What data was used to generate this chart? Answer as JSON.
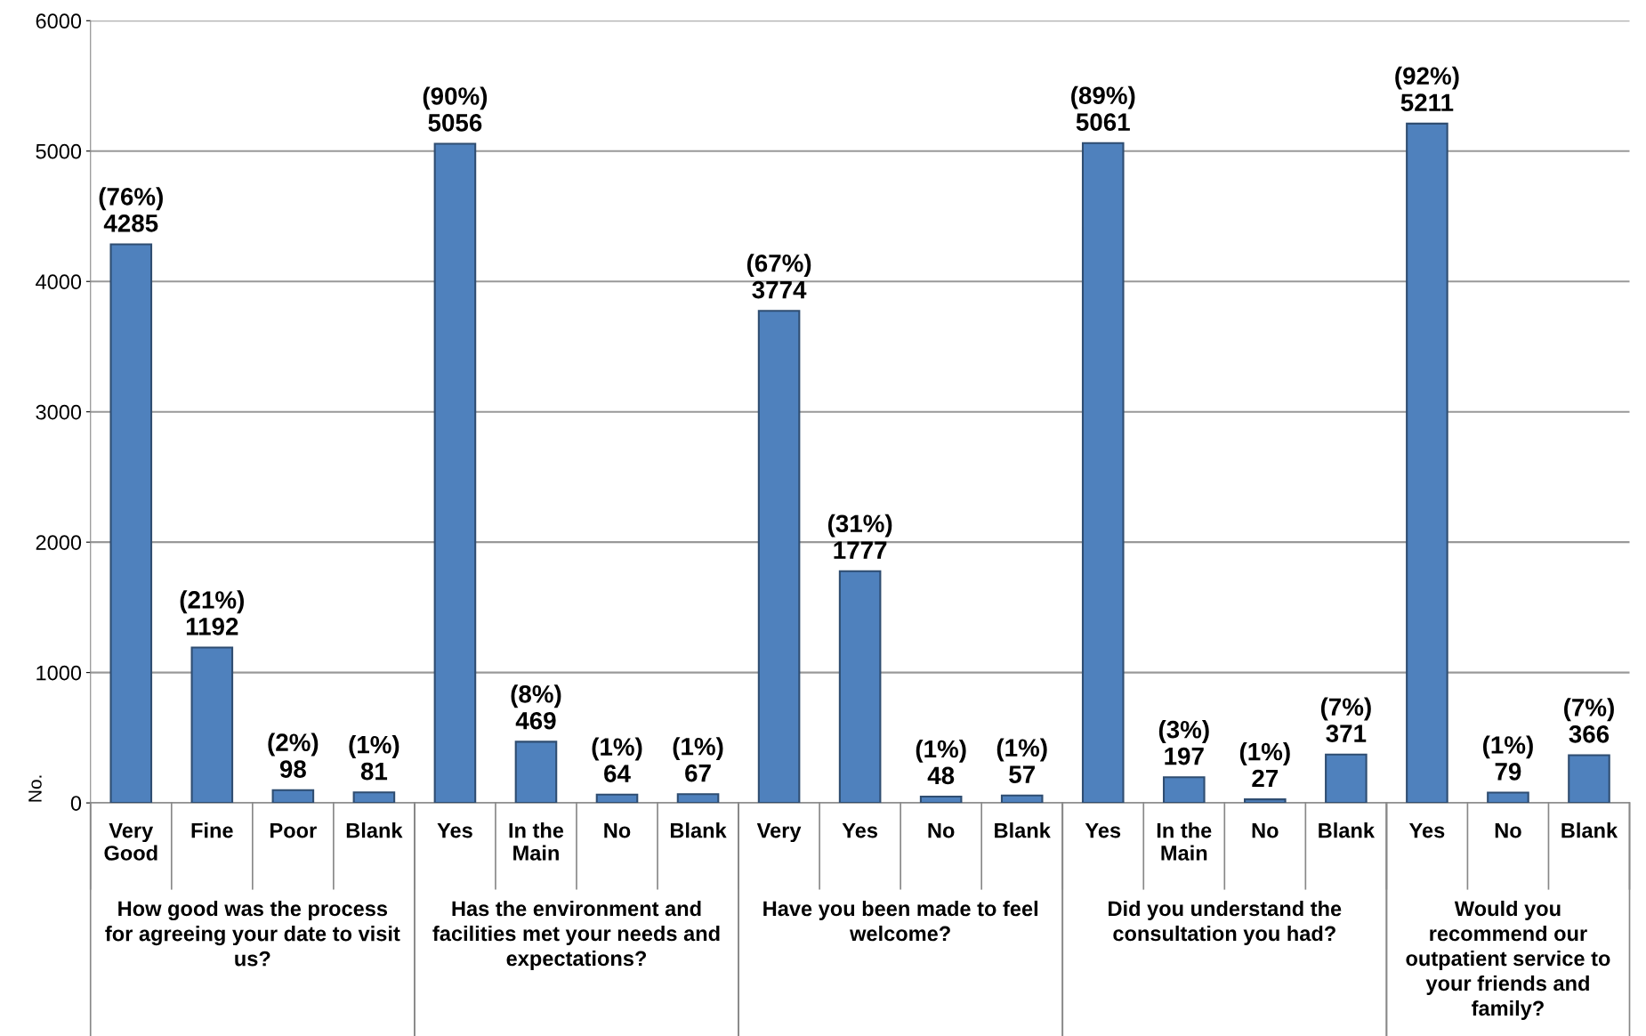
{
  "chart_data": {
    "type": "bar",
    "ylabel": "No.",
    "categories": [
      "Very\nGood",
      "Fine",
      "Poor",
      "Blank",
      "Yes",
      "In the\nMain",
      "No",
      "Blank",
      "Very",
      "Yes",
      "No",
      "Blank",
      "Yes",
      "In the\nMain",
      "No",
      "Blank",
      "Yes",
      "No",
      "Blank"
    ],
    "series": [
      {
        "color": "#4f81bd",
        "values": [
          4285,
          1192,
          98,
          81,
          null,
          null,
          null,
          null,
          null,
          null,
          null,
          null,
          null,
          null,
          null,
          null,
          null,
          null,
          null
        ],
        "value_labels": [
          "(76%)\n4285",
          "(21%)\n1192",
          "(2%)\n98",
          "(1%)\n81",
          null,
          null,
          null,
          null,
          null,
          null,
          null,
          null,
          null,
          null,
          null,
          null,
          null,
          null,
          null
        ]
      },
      {
        "color": "#4f81bd",
        "values": [
          null,
          null,
          null,
          null,
          5056,
          469,
          64,
          67,
          null,
          null,
          null,
          null,
          null,
          null,
          null,
          null,
          null,
          null,
          null
        ],
        "value_labels": [
          null,
          null,
          null,
          null,
          "(90%)\n5056",
          "(8%)\n469",
          "(1%)\n64",
          "(1%)\n67",
          null,
          null,
          null,
          null,
          null,
          null,
          null,
          null,
          null,
          null,
          null
        ]
      },
      {
        "color": "#4f81bd",
        "values": [
          null,
          null,
          null,
          null,
          null,
          null,
          null,
          null,
          3774,
          1777,
          48,
          57,
          null,
          null,
          null,
          null,
          null,
          null,
          null
        ],
        "value_labels": [
          null,
          null,
          null,
          null,
          null,
          null,
          null,
          null,
          "(67%)\n3774",
          "(31%)\n1777",
          "(1%)\n48",
          "(1%)\n57",
          null,
          null,
          null,
          null,
          null,
          null,
          null
        ]
      },
      {
        "color": "#4f81bd",
        "values": [
          null,
          null,
          null,
          null,
          null,
          null,
          null,
          null,
          null,
          null,
          null,
          null,
          5061,
          197,
          27,
          371,
          null,
          null,
          null
        ],
        "value_labels": [
          null,
          null,
          null,
          null,
          null,
          null,
          null,
          null,
          null,
          null,
          null,
          null,
          "(89%)\n5061",
          "(3%)\n197",
          "(1%)\n27",
          "(7%)\n371",
          null,
          null,
          null
        ]
      },
      {
        "color": "#4f81bd",
        "values": [
          null,
          null,
          null,
          null,
          null,
          null,
          null,
          null,
          null,
          null,
          null,
          null,
          null,
          null,
          null,
          null,
          5211,
          79,
          366
        ],
        "value_labels": [
          null,
          null,
          null,
          null,
          null,
          null,
          null,
          null,
          null,
          null,
          null,
          null,
          null,
          null,
          null,
          null,
          "(92%)\n5211",
          "(1%)\n79",
          "(7%)\n366"
        ]
      }
    ],
    "annotations": [
      "How good was the process\nfor agreeing your date to visit\nus?",
      "Has the environment and\nfacilities met your needs and\nexpectations?",
      "Have you been made to feel\nwelcome?",
      "Did you understand the\nconsultation you had?",
      "Would you\nrecommend our\noutpatient service to\nyour friends and\nfamily?"
    ],
    "ylim": [
      0,
      6000
    ],
    "yticks": [
      0,
      1000,
      2000,
      3000,
      4000,
      5000,
      6000
    ],
    "grid": "y"
  }
}
